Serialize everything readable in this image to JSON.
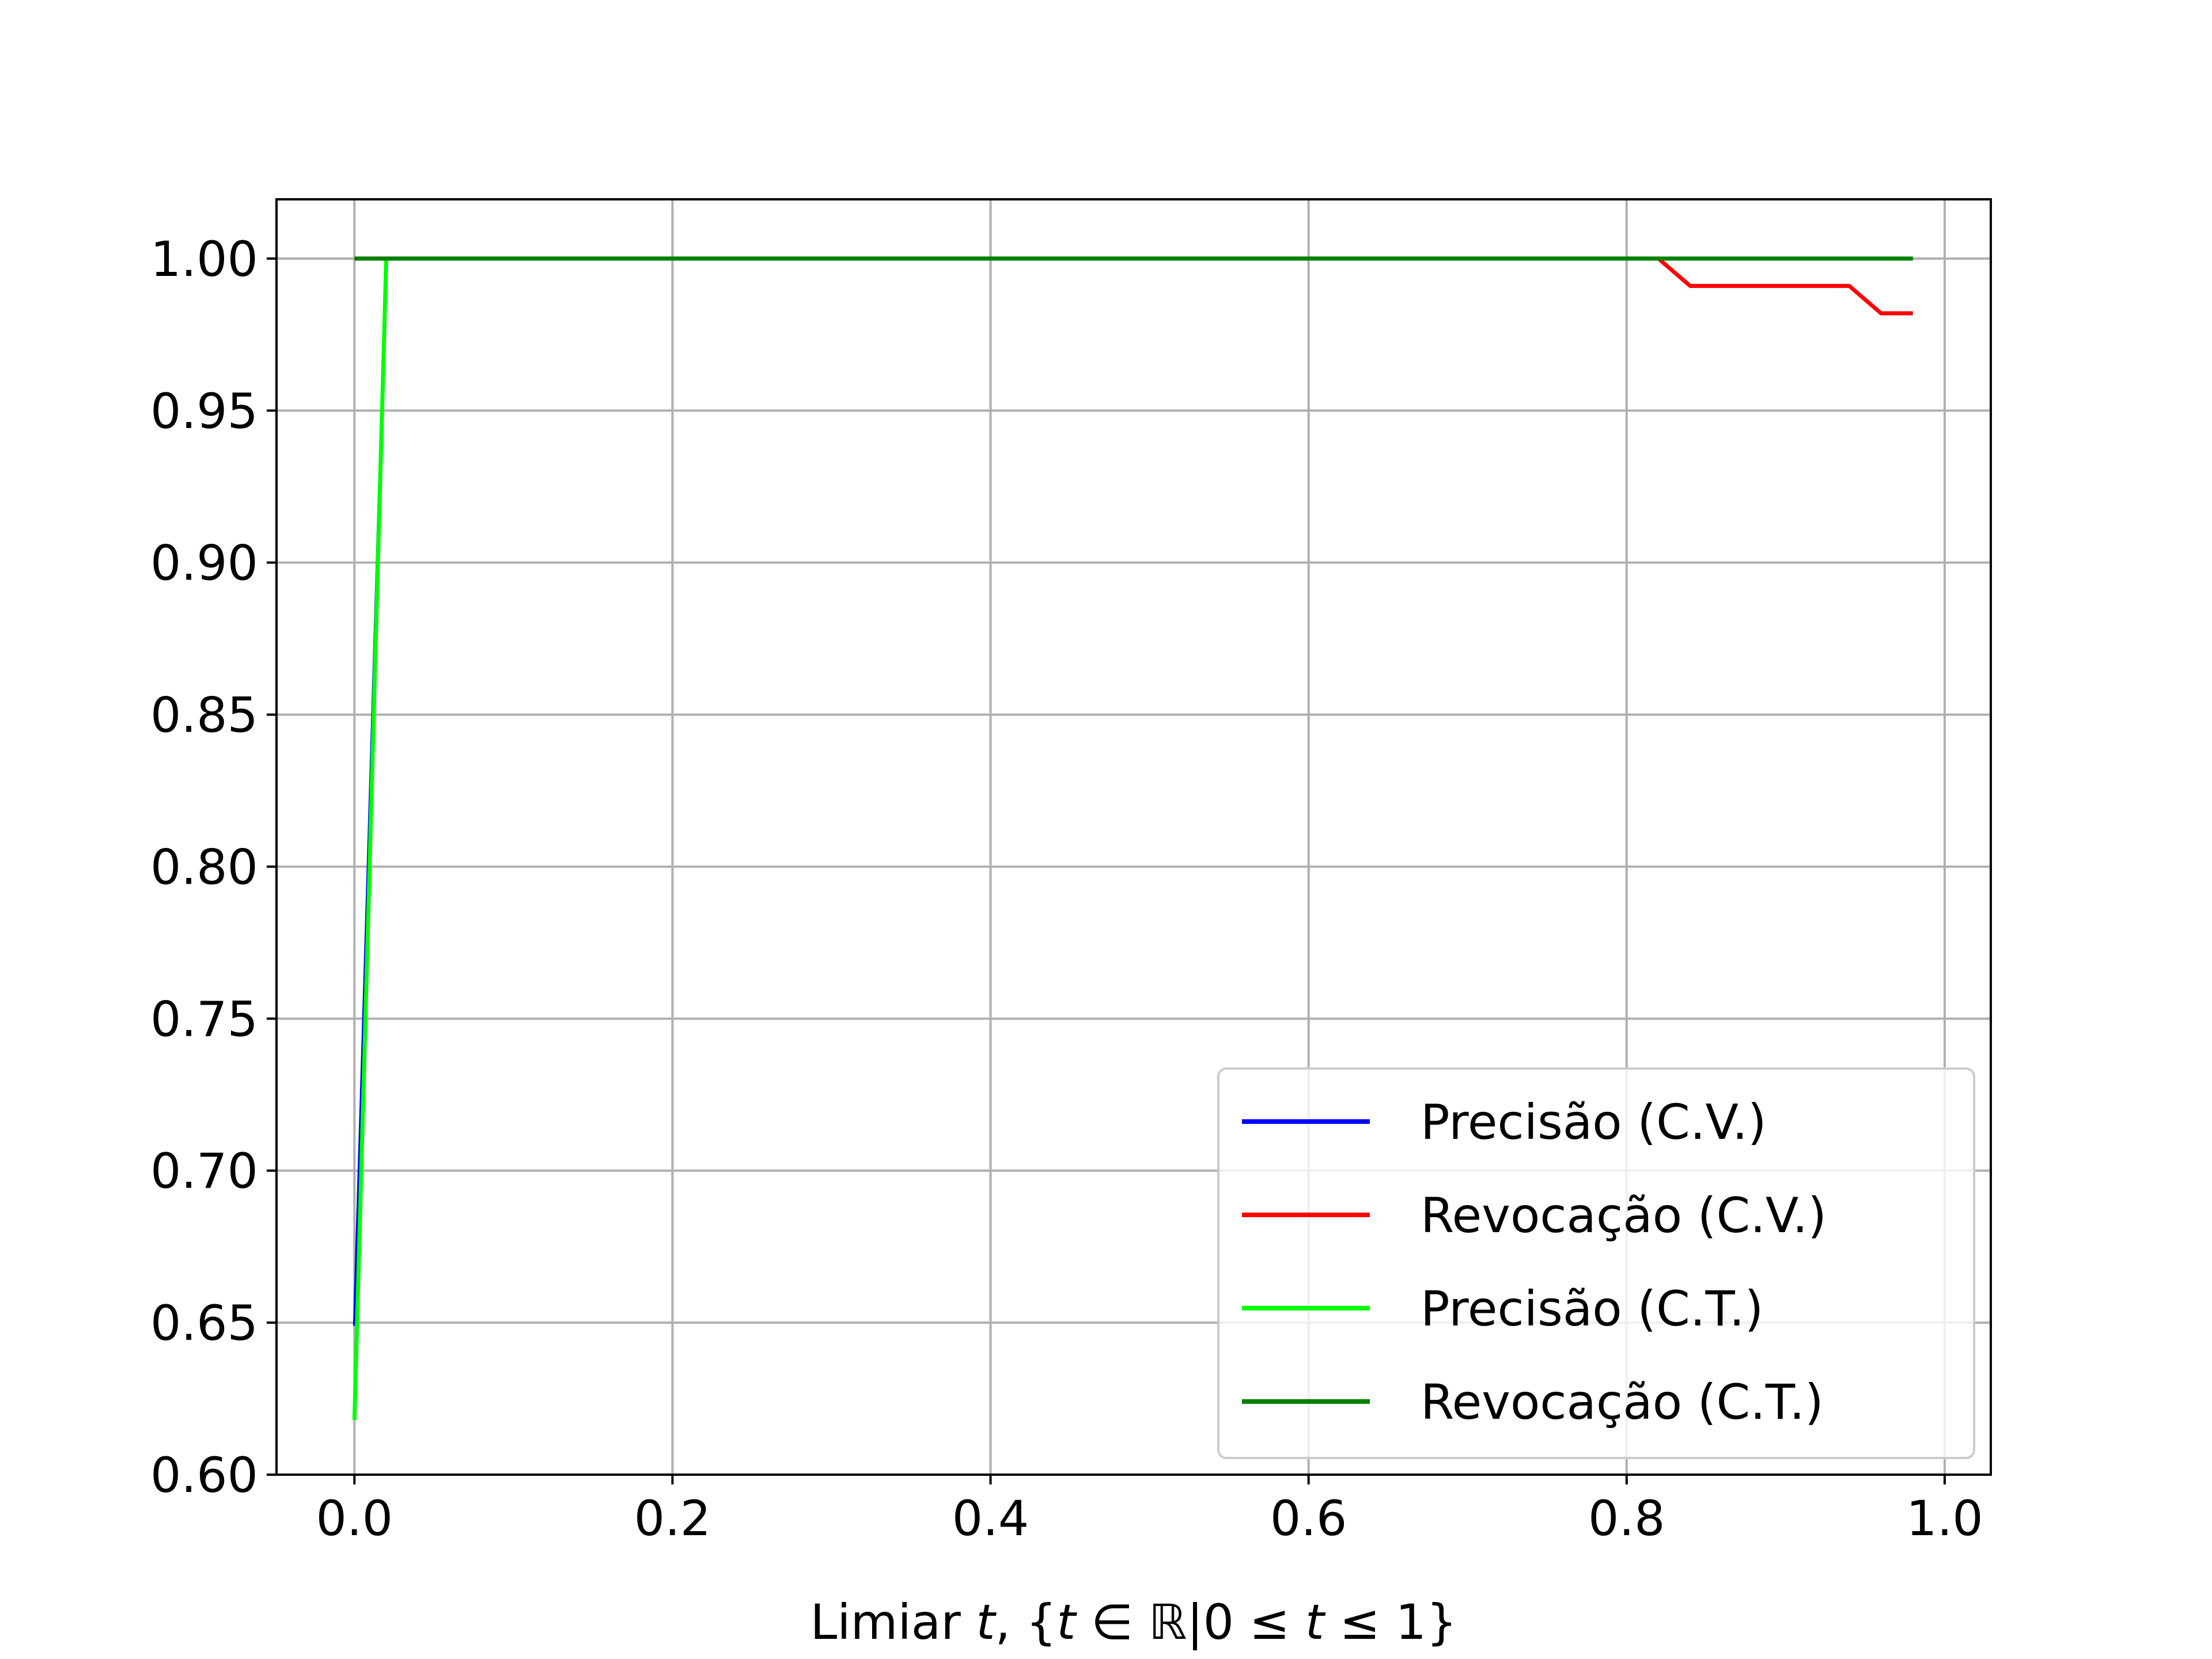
{
  "chart_data": {
    "type": "line",
    "title": "",
    "xlabel": "Limiar t, {t ∈ ℝ|0 ≤ t ≤ 1}",
    "xlabel_parts": {
      "prefix": "Limiar ",
      "var": "t",
      "mid": ", {",
      "var2": "t",
      "set": " ∈ ℝ|0 ≤ ",
      "var3": "t",
      "suffix": " ≤ 1}"
    },
    "ylabel": "",
    "xlim": [
      -0.049,
      1.029
    ],
    "ylim": [
      0.6,
      1.0195
    ],
    "grid": true,
    "legend_position": "lower-right",
    "xticks": [
      0.0,
      0.2,
      0.4,
      0.6,
      0.8,
      1.0
    ],
    "xtick_labels": [
      "0.0",
      "0.2",
      "0.4",
      "0.6",
      "0.8",
      "1.0"
    ],
    "yticks": [
      0.6,
      0.65,
      0.7,
      0.75,
      0.8,
      0.85,
      0.9,
      0.95,
      1.0
    ],
    "ytick_labels": [
      "0.60",
      "0.65",
      "0.70",
      "0.75",
      "0.80",
      "0.85",
      "0.90",
      "0.95",
      "1.00"
    ],
    "series": [
      {
        "name": "Precisão (C.V.)",
        "color": "#0000ff",
        "width": 5,
        "x": [
          0.0,
          0.02,
          0.04,
          0.98
        ],
        "y": [
          0.649,
          1.0,
          1.0,
          1.0
        ]
      },
      {
        "name": "Revocação (C.V.)",
        "color": "#ff0000",
        "width": 7,
        "x": [
          0.0,
          0.82,
          0.84,
          0.86,
          0.88,
          0.9,
          0.92,
          0.94,
          0.96,
          0.98
        ],
        "y": [
          1.0,
          1.0,
          0.991,
          0.991,
          0.991,
          0.991,
          0.991,
          0.991,
          0.982,
          0.982
        ]
      },
      {
        "name": "Precisão (C.T.)",
        "color": "#00ff00",
        "width": 7,
        "x": [
          0.0,
          0.02,
          0.04,
          0.98
        ],
        "y": [
          0.618,
          1.0,
          1.0,
          1.0
        ]
      },
      {
        "name": "Revocação (C.T.)",
        "color": "#008000",
        "width": 7,
        "x": [
          0.0,
          0.02,
          0.98
        ],
        "y": [
          1.0,
          1.0,
          1.0
        ]
      }
    ]
  }
}
